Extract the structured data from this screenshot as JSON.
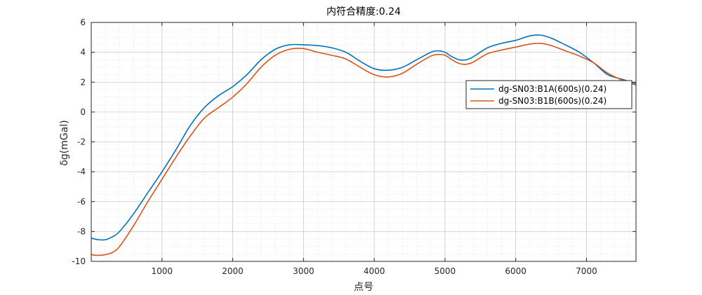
{
  "chart_data": {
    "type": "line",
    "title": "内符合精度:0.24",
    "xlabel": "点号",
    "ylabel": "δg(mGal)",
    "xlim": [
      0,
      7700
    ],
    "ylim": [
      -10,
      6
    ],
    "xticks": [
      1000,
      2000,
      3000,
      4000,
      5000,
      6000,
      7000
    ],
    "yticks": [
      -10,
      -8,
      -6,
      -4,
      -2,
      0,
      2,
      4,
      6
    ],
    "grid": true,
    "minor_grid": true,
    "legend_position": "right",
    "series": [
      {
        "name": "dg-SN03:B1A(600s)(0.24)",
        "color": "#0072BD",
        "x": [
          0,
          100,
          200,
          300,
          400,
          600,
          800,
          1000,
          1200,
          1400,
          1600,
          1800,
          2000,
          2200,
          2400,
          2600,
          2800,
          3000,
          3200,
          3400,
          3600,
          3800,
          4000,
          4200,
          4400,
          4600,
          4800,
          4900,
          5000,
          5100,
          5200,
          5300,
          5400,
          5600,
          5800,
          6000,
          6200,
          6350,
          6500,
          6700,
          6900,
          7100,
          7300,
          7500,
          7700
        ],
        "y": [
          -8.45,
          -8.55,
          -8.55,
          -8.35,
          -8.0,
          -6.8,
          -5.4,
          -4.0,
          -2.5,
          -0.9,
          0.3,
          1.1,
          1.7,
          2.5,
          3.5,
          4.2,
          4.5,
          4.5,
          4.45,
          4.3,
          4.0,
          3.4,
          2.9,
          2.8,
          3.0,
          3.5,
          4.0,
          4.1,
          4.0,
          3.7,
          3.5,
          3.5,
          3.7,
          4.3,
          4.6,
          4.8,
          5.1,
          5.15,
          4.95,
          4.5,
          4.0,
          3.3,
          2.5,
          2.2,
          1.9
        ]
      },
      {
        "name": "dg-SN03:B1B(600s)(0.24)",
        "color": "#D95319",
        "x": [
          0,
          100,
          200,
          300,
          400,
          600,
          800,
          1000,
          1200,
          1400,
          1600,
          1800,
          2000,
          2200,
          2400,
          2600,
          2800,
          3000,
          3200,
          3400,
          3600,
          3800,
          4000,
          4200,
          4400,
          4600,
          4800,
          4900,
          5000,
          5100,
          5200,
          5300,
          5400,
          5600,
          5800,
          6000,
          6200,
          6350,
          6500,
          6700,
          6900,
          7100,
          7300,
          7500,
          7700
        ],
        "y": [
          -9.55,
          -9.6,
          -9.55,
          -9.4,
          -9.0,
          -7.6,
          -6.0,
          -4.5,
          -3.0,
          -1.6,
          -0.4,
          0.3,
          1.0,
          1.9,
          3.0,
          3.8,
          4.2,
          4.25,
          4.0,
          3.8,
          3.55,
          3.0,
          2.5,
          2.35,
          2.6,
          3.2,
          3.75,
          3.85,
          3.8,
          3.5,
          3.25,
          3.2,
          3.35,
          3.9,
          4.15,
          4.35,
          4.55,
          4.6,
          4.45,
          4.1,
          3.75,
          3.3,
          2.6,
          2.15,
          1.8
        ]
      }
    ]
  }
}
